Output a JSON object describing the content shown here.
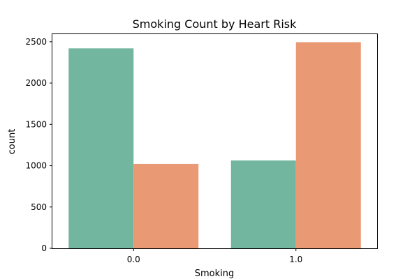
{
  "chart_data": {
    "type": "bar",
    "title": "Smoking Count by Heart Risk",
    "xlabel": "Smoking",
    "ylabel": "count",
    "categories": [
      "0.0",
      "1.0"
    ],
    "series": [
      {
        "values": [
          2420,
          1063
        ],
        "color": "#73b6a0"
      },
      {
        "values": [
          1022,
          2495
        ],
        "color": "#e99a74"
      }
    ],
    "ylim": [
      0,
      2600
    ],
    "yticks": [
      0,
      500,
      1000,
      1500,
      2000,
      2500
    ],
    "grid": false,
    "legend": "none"
  }
}
